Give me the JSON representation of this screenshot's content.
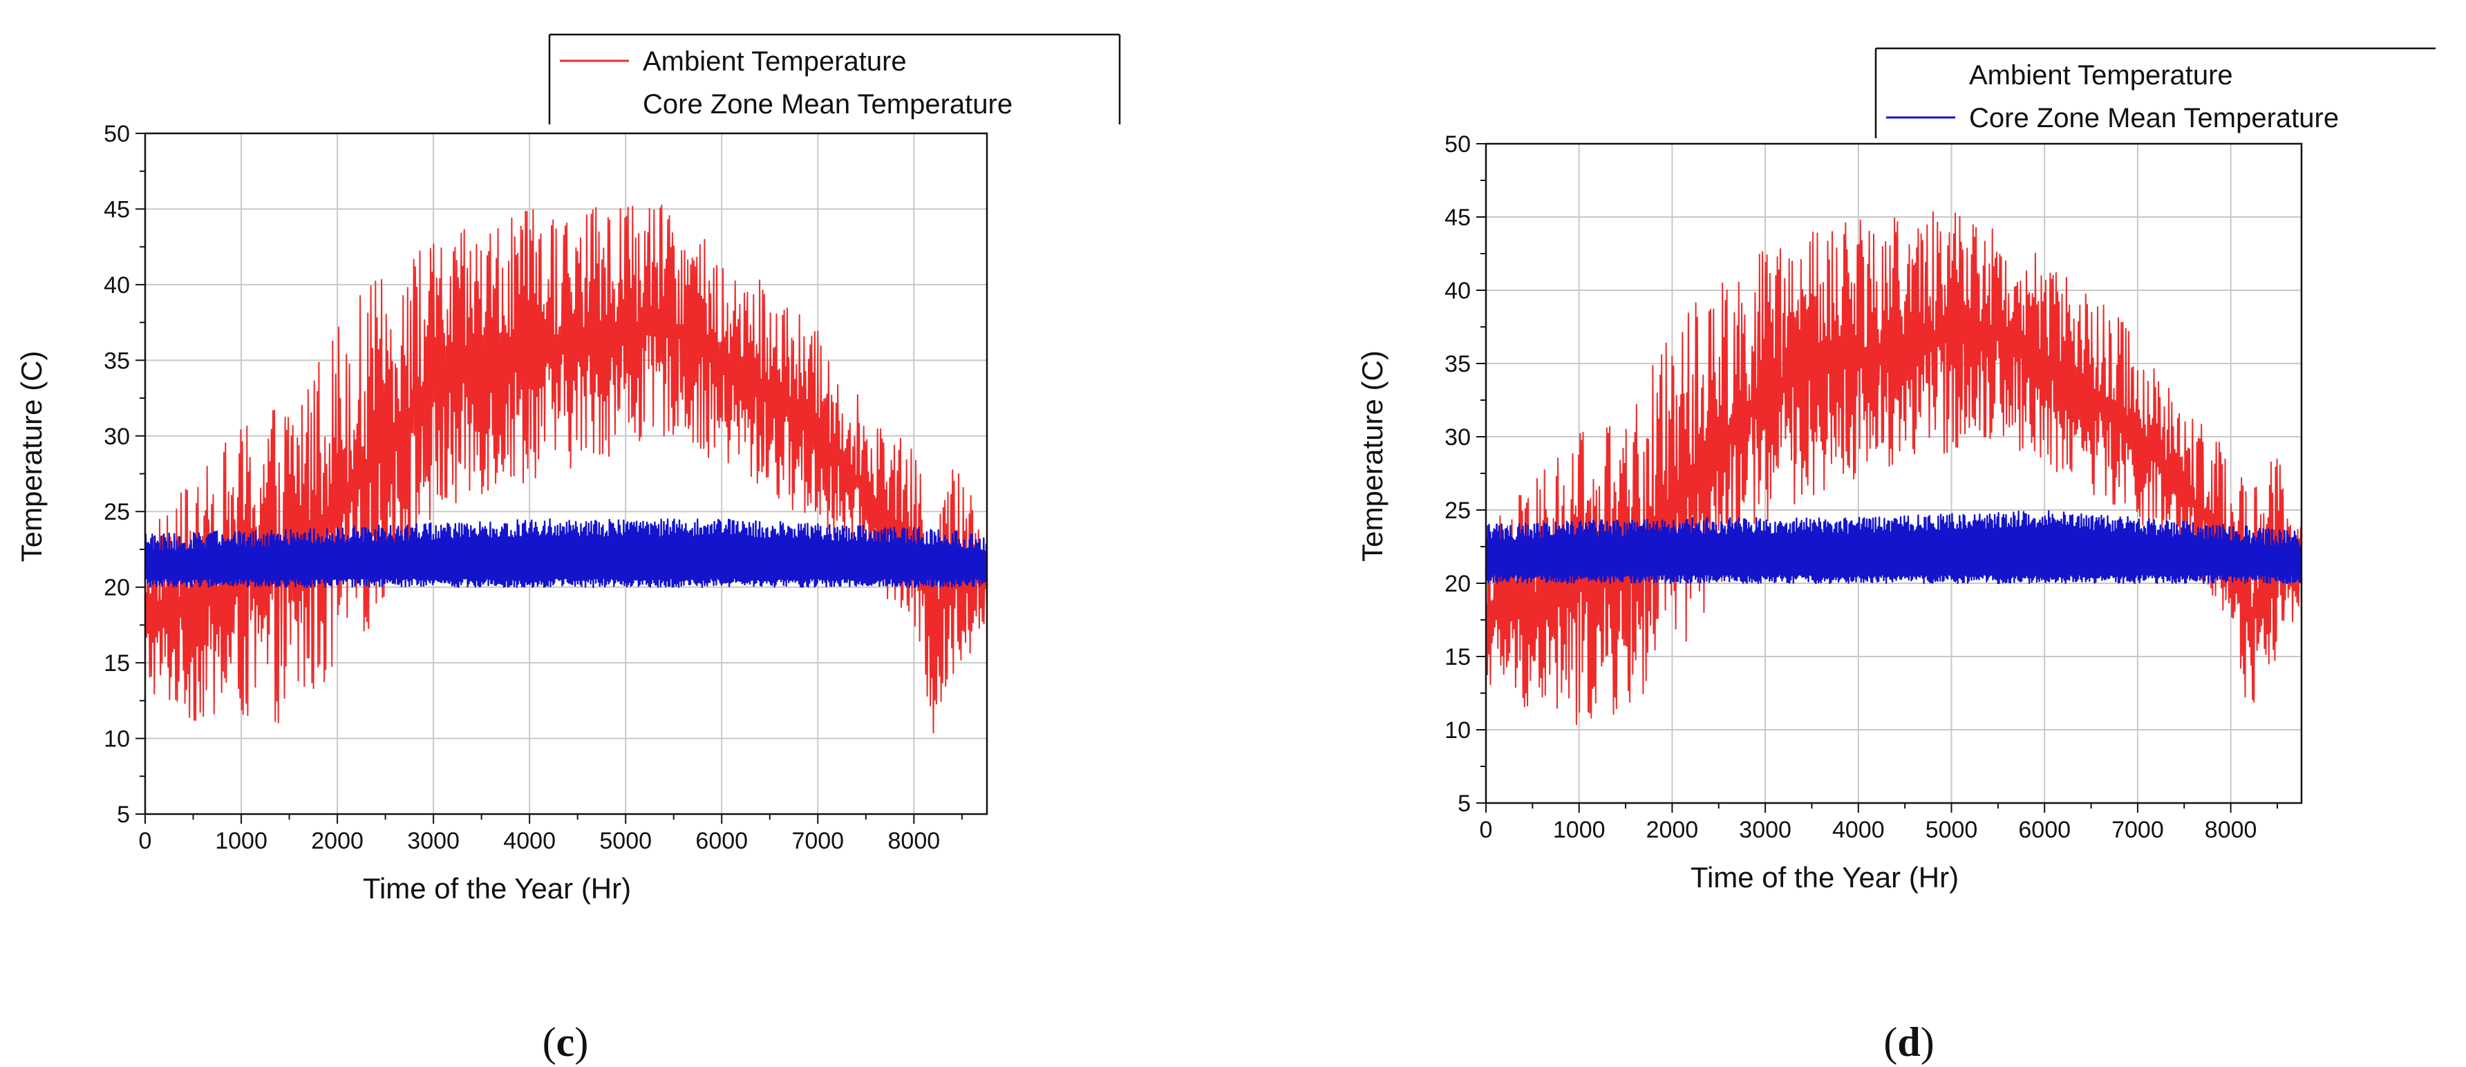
{
  "chart_data": [
    {
      "type": "line",
      "panel_label": "c",
      "xlabel": "Time of the Year (Hr)",
      "ylabel": "Temperature (C)",
      "xlim": [
        0,
        8760
      ],
      "ylim": [
        5,
        50
      ],
      "x_ticks": [
        0,
        1000,
        2000,
        3000,
        4000,
        5000,
        6000,
        7000,
        8000
      ],
      "y_ticks": [
        5,
        10,
        15,
        20,
        25,
        30,
        35,
        40,
        45,
        50
      ],
      "grid": true,
      "legend_position": "top-right",
      "colors": {
        "ambient": "#ee2a2a",
        "core": "#1414cc"
      },
      "series": [
        {
          "name": "Ambient Temperature",
          "legend_swatch": true,
          "envelope": {
            "x": [
              0,
              500,
              1000,
              1500,
              2000,
              2500,
              3000,
              3500,
              4000,
              4500,
              5000,
              5500,
              6000,
              6500,
              7000,
              7500,
              8000,
              8200,
              8500,
              8760
            ],
            "low": [
              13,
              11,
              11,
              11,
              14,
              19,
              24,
              26,
              27,
              28,
              29,
              30,
              28,
              26,
              24,
              21,
              17,
              10,
              15,
              17
            ],
            "high": [
              24,
              27,
              31,
              33,
              38,
              41,
              43,
              44,
              45,
              45,
              46,
              45,
              42,
              40,
              37,
              32,
              29,
              26,
              29,
              24
            ]
          }
        },
        {
          "name": "Core Zone Mean Temperature",
          "legend_swatch": false,
          "envelope": {
            "x": [
              0,
              2000,
              4000,
              6000,
              8000,
              8760
            ],
            "low": [
              20,
              20,
              20,
              20,
              20,
              20
            ],
            "high": [
              23.5,
              24,
              24.5,
              24.5,
              24,
              23.5
            ]
          }
        }
      ]
    },
    {
      "type": "line",
      "panel_label": "d",
      "xlabel": "Time of the Year (Hr)",
      "ylabel": "Temperature (C)",
      "xlim": [
        0,
        8760
      ],
      "ylim": [
        5,
        50
      ],
      "x_ticks": [
        0,
        1000,
        2000,
        3000,
        4000,
        5000,
        6000,
        7000,
        8000
      ],
      "y_ticks": [
        5,
        10,
        15,
        20,
        25,
        30,
        35,
        40,
        45,
        50
      ],
      "grid": true,
      "legend_position": "top-right",
      "colors": {
        "ambient": "#ee2a2a",
        "core": "#1414cc"
      },
      "series": [
        {
          "name": "Ambient Temperature",
          "legend_swatch": false,
          "envelope": {
            "x": [
              0,
              500,
              1000,
              1500,
              2000,
              2500,
              3000,
              3500,
              4000,
              4500,
              5000,
              5500,
              6000,
              6500,
              7000,
              7500,
              8000,
              8200,
              8500,
              8760
            ],
            "low": [
              13,
              11,
              10,
              11,
              14,
              19,
              24,
              26,
              27,
              28,
              29,
              30,
              28,
              26,
              24,
              21,
              17,
              10,
              15,
              17
            ],
            "high": [
              24,
              27,
              31,
              31,
              38,
              41,
              43,
              44,
              45,
              45,
              46,
              45,
              42,
              40,
              37,
              32,
              29,
              26,
              29,
              24
            ]
          }
        },
        {
          "name": "Core Zone Mean Temperature",
          "legend_swatch": true,
          "envelope": {
            "x": [
              0,
              2000,
              4000,
              6000,
              8000,
              8760
            ],
            "low": [
              20,
              20,
              20,
              20,
              20,
              20
            ],
            "high": [
              24,
              24.5,
              24.5,
              25,
              24,
              23.5
            ]
          }
        }
      ]
    }
  ],
  "captions": [
    {
      "open": "(",
      "letter": "c",
      "close": ")"
    },
    {
      "open": "(",
      "letter": "d",
      "close": ")"
    }
  ]
}
